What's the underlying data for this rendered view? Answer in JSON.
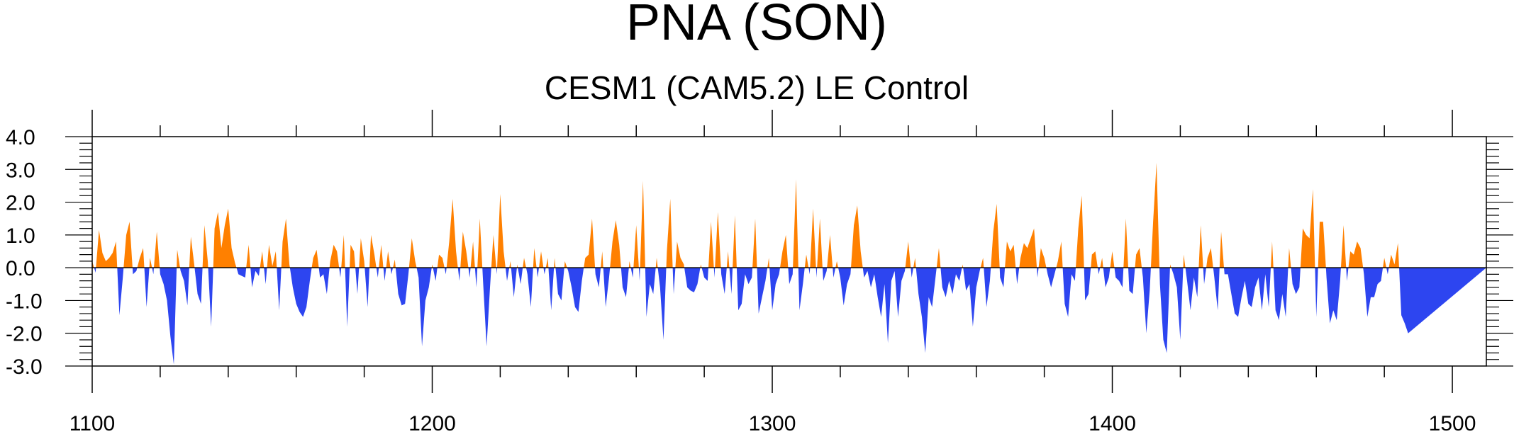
{
  "chart_data": {
    "type": "area",
    "title": "PNA (SON)",
    "subtitle": "CESM1 (CAM5.2) LE Control",
    "xlabel": "",
    "ylabel": "",
    "xlim": [
      1100,
      1510
    ],
    "ylim": [
      -3.0,
      4.0
    ],
    "x_ticks": [
      "1100",
      "1200",
      "1300",
      "1400",
      "1500"
    ],
    "y_ticks": [
      "4.0",
      "3.0",
      "2.0",
      "1.0",
      "0.0",
      "-1.0",
      "-2.0",
      "-3.0"
    ],
    "positive_color": "#ff8000",
    "negative_color": "#2d45f0",
    "x_start": 1100,
    "values": [
      0.2,
      -0.15,
      1.15,
      0.45,
      0.2,
      0.3,
      0.45,
      0.8,
      -1.45,
      -0.3,
      1.0,
      1.4,
      -0.2,
      -0.1,
      0.3,
      0.6,
      -1.2,
      0.3,
      -0.2,
      1.1,
      -0.2,
      -0.5,
      -1.0,
      -2.1,
      -2.95,
      0.55,
      -0.1,
      -0.4,
      -1.15,
      0.95,
      0.1,
      -0.8,
      -1.1,
      1.3,
      0.2,
      -1.8,
      1.2,
      1.7,
      0.6,
      1.3,
      1.8,
      0.6,
      0.15,
      -0.2,
      -0.25,
      -0.3,
      0.7,
      -0.6,
      -0.1,
      -0.25,
      0.5,
      -0.5,
      0.7,
      0.05,
      0.5,
      -1.3,
      0.8,
      1.5,
      0.1,
      -0.6,
      -1.1,
      -1.35,
      -1.5,
      -1.2,
      -0.4,
      0.3,
      0.55,
      -0.3,
      -0.2,
      -0.8,
      0.2,
      0.7,
      0.5,
      -0.3,
      1.0,
      -1.8,
      0.7,
      0.5,
      -0.8,
      0.9,
      0.2,
      -1.2,
      1.0,
      0.4,
      -0.3,
      0.7,
      -0.4,
      0.5,
      -0.2,
      0.25,
      -0.8,
      -1.15,
      -1.1,
      -0.2,
      0.9,
      0.2,
      -0.3,
      -2.4,
      -1.0,
      -0.6,
      0.1,
      -0.4,
      0.4,
      0.3,
      -0.2,
      0.8,
      2.1,
      0.5,
      -0.4,
      1.1,
      0.5,
      -0.3,
      0.8,
      -0.6,
      1.5,
      -0.5,
      -2.4,
      -0.6,
      1.0,
      -0.2,
      2.25,
      0.5,
      -0.4,
      0.2,
      -0.9,
      0.1,
      -0.5,
      0.3,
      -0.2,
      -1.2,
      0.6,
      -0.3,
      0.5,
      -0.2,
      0.3,
      -1.3,
      0.3,
      -0.8,
      -1.0,
      0.2,
      -0.1,
      -0.6,
      -1.2,
      -1.35,
      -0.4,
      0.3,
      0.4,
      1.5,
      -0.2,
      -0.6,
      0.5,
      -1.2,
      -0.3,
      0.8,
      1.45,
      0.7,
      -0.6,
      -0.9,
      0.2,
      -0.3,
      1.3,
      -0.4,
      2.65,
      -1.5,
      -0.5,
      -0.8,
      0.3,
      -0.6,
      -2.2,
      0.5,
      2.1,
      -0.8,
      0.8,
      0.3,
      0.1,
      -0.6,
      -0.7,
      -0.75,
      -0.5,
      0.1,
      -0.3,
      -0.4,
      1.4,
      -0.3,
      1.7,
      -0.2,
      -0.8,
      0.5,
      -0.8,
      1.6,
      -1.3,
      -1.1,
      -0.2,
      -0.5,
      -0.3,
      1.5,
      -1.4,
      -0.9,
      -0.4,
      0.3,
      -1.3,
      -0.5,
      -0.2,
      0.5,
      1.0,
      -0.5,
      -0.2,
      2.7,
      -1.3,
      -0.5,
      0.4,
      -0.2,
      1.8,
      -0.3,
      1.5,
      -0.4,
      -0.1,
      1.0,
      -0.3,
      0.2,
      -0.3,
      -1.15,
      -0.5,
      -0.2,
      1.3,
      1.9,
      0.5,
      -0.3,
      -0.1,
      -0.6,
      -0.2,
      -0.9,
      -1.5,
      -0.5,
      -2.3,
      -0.4,
      -0.1,
      -1.5,
      -0.4,
      -0.1,
      0.8,
      -0.3,
      0.3,
      -0.8,
      -1.5,
      -2.6,
      -0.9,
      -1.2,
      -0.3,
      0.6,
      -0.6,
      -0.9,
      -0.4,
      -0.8,
      -0.2,
      -0.4,
      0.1,
      -0.7,
      -0.5,
      -1.8,
      -0.6,
      -0.1,
      0.3,
      -1.2,
      -0.4,
      1.1,
      1.95,
      -0.3,
      -0.6,
      0.8,
      0.5,
      0.7,
      -0.5,
      0.3,
      0.75,
      0.6,
      0.9,
      1.2,
      -0.3,
      0.6,
      0.3,
      -0.2,
      -0.6,
      -0.2,
      0.2,
      0.8,
      -1.1,
      -1.5,
      -0.2,
      -0.4,
      1.2,
      2.2,
      -1.0,
      -0.8,
      0.4,
      0.5,
      -0.2,
      0.3,
      -0.6,
      -0.3,
      0.5,
      -0.3,
      -0.4,
      -0.6,
      1.5,
      -0.7,
      -0.8,
      0.4,
      0.6,
      -0.3,
      -2.0,
      -0.7,
      1.4,
      3.2,
      -0.5,
      -2.2,
      -2.6,
      0.1,
      -0.2,
      -0.6,
      -2.2,
      0.4,
      -0.4,
      -1.3,
      -0.3,
      -0.9,
      1.3,
      -0.5,
      0.3,
      0.6,
      -0.3,
      -1.3,
      1.1,
      -0.2,
      -0.2,
      -0.8,
      -1.4,
      -1.5,
      -0.9,
      -0.4,
      -1.1,
      -1.2,
      -0.6,
      -0.3,
      -1.3,
      -0.2,
      -1.2,
      0.8,
      -1.3,
      -1.6,
      -0.8,
      -1.5,
      0.6,
      -0.5,
      -0.8,
      -0.6,
      1.2,
      1.0,
      0.9,
      2.4,
      -1.5,
      1.4,
      1.4,
      -0.3,
      -1.7,
      -1.3,
      -1.6,
      -0.4,
      1.3,
      -0.4,
      0.5,
      0.4,
      0.8,
      0.6,
      -0.2,
      -1.5,
      -0.9,
      -0.9,
      -0.5,
      -0.4,
      0.3,
      -0.2,
      0.4,
      0.1,
      0.75,
      -1.45,
      -1.7,
      -2.0
    ]
  }
}
